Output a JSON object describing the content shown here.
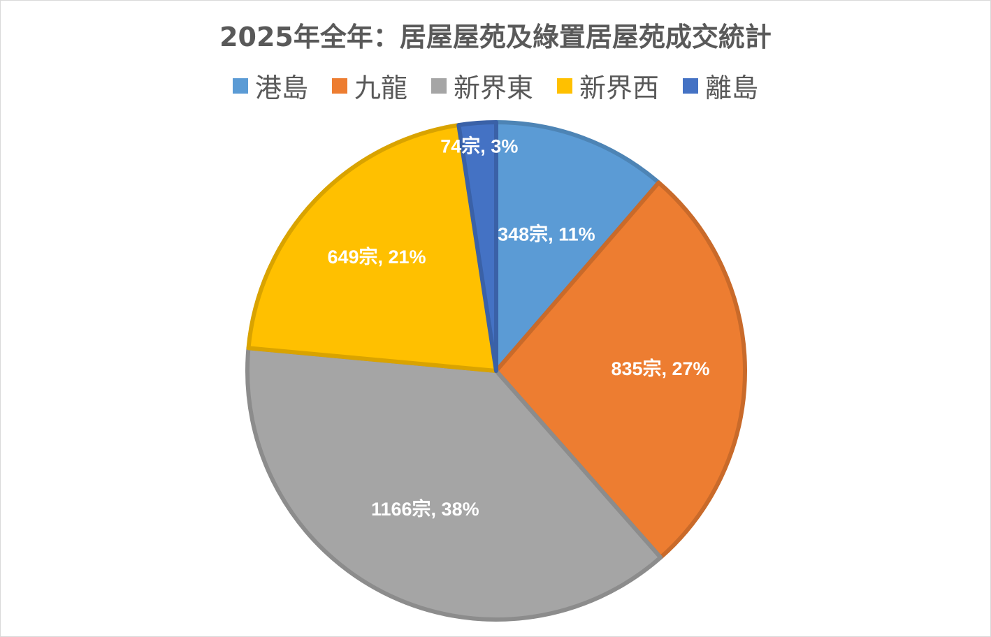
{
  "chart_data": {
    "type": "pie",
    "title": "2025年全年：居屋屋苑及綠置居屋苑成交統計",
    "slices": [
      {
        "name": "港島",
        "value": 348,
        "percent": 11,
        "label": "348宗, 11%",
        "color": "#5b9bd5"
      },
      {
        "name": "九龍",
        "value": 835,
        "percent": 27,
        "label": "835宗, 27%",
        "color": "#ed7d31"
      },
      {
        "name": "新界東",
        "value": 1166,
        "percent": 38,
        "label": "1166宗, 38%",
        "color": "#a5a5a5"
      },
      {
        "name": "新界西",
        "value": 649,
        "percent": 21,
        "label": "649宗, 21%",
        "color": "#ffc000"
      },
      {
        "name": "離島",
        "value": 74,
        "percent": 3,
        "label": "74宗, 3%",
        "color": "#4472c4"
      }
    ],
    "legend_position": "top",
    "start_angle": "12 o'clock",
    "direction": "clockwise"
  }
}
